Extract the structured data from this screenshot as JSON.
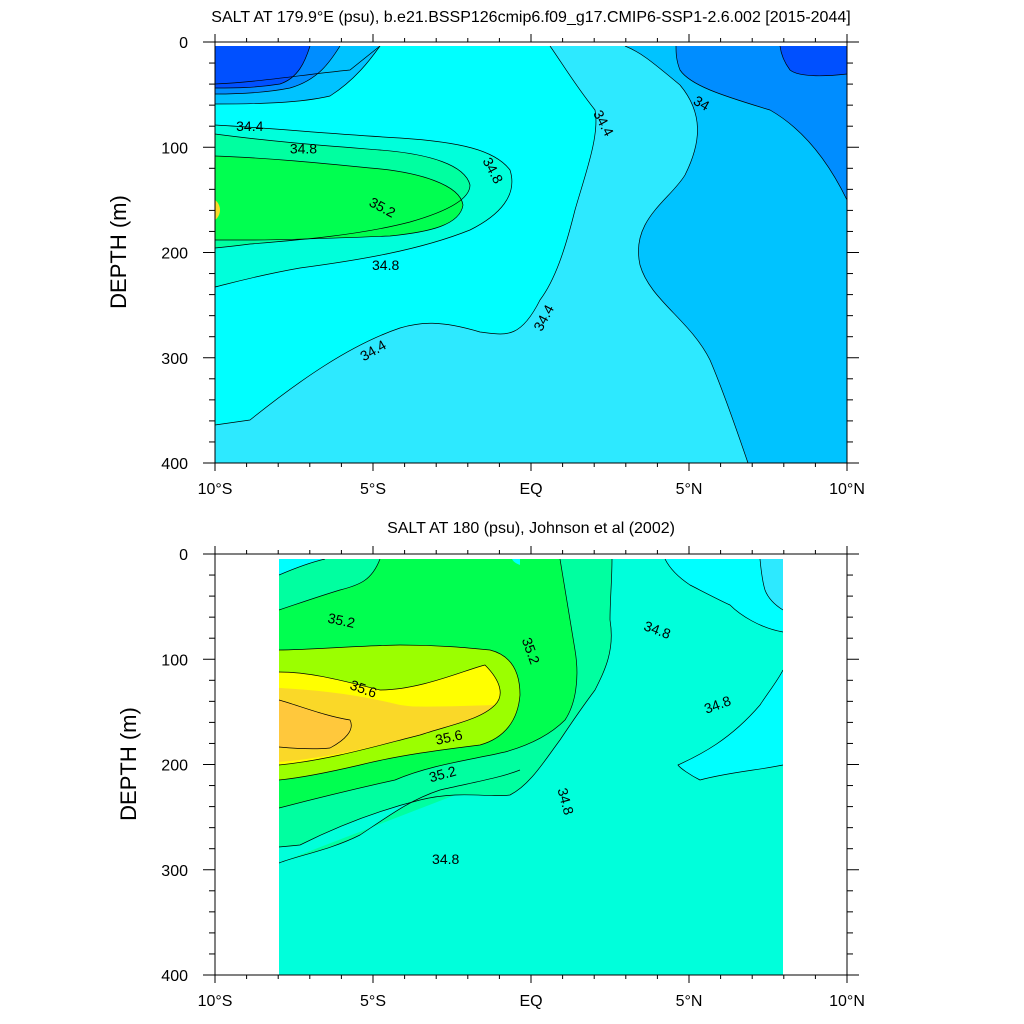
{
  "chart_data": [
    {
      "type": "contour",
      "title": "SALT AT 179.9°E (psu), b.e21.BSSP126cmip6.f09_g17.CMIP6-SSP1-2.6.002 [2015-2044]",
      "xlabel": "",
      "ylabel": "DEPTH (m)",
      "x_ticks": [
        "10°S",
        "5°S",
        "EQ",
        "5°N",
        "10°N"
      ],
      "x_tick_values": [
        -10,
        -5,
        0,
        5,
        10
      ],
      "y_ticks": [
        "0",
        "100",
        "200",
        "300",
        "400"
      ],
      "y_tick_values": [
        0,
        100,
        200,
        300,
        400
      ],
      "xlim": [
        -10,
        10
      ],
      "ylim": [
        400,
        0
      ],
      "data_extent_lat": [
        -10,
        10
      ],
      "data_extent_depth": [
        5,
        400
      ],
      "contour_labels": [
        {
          "text": "34.4",
          "lat": -8.9,
          "depth": 80,
          "angle": 0
        },
        {
          "text": "34.8",
          "lat": -7.2,
          "depth": 101,
          "angle": 0
        },
        {
          "text": "35.2",
          "lat": -4.7,
          "depth": 157,
          "angle": 28
        },
        {
          "text": "34.8",
          "lat": -1.2,
          "depth": 122,
          "angle": 62
        },
        {
          "text": "34.8",
          "lat": -4.6,
          "depth": 212,
          "angle": 0
        },
        {
          "text": "34.4",
          "lat": -5.0,
          "depth": 293,
          "angle": -30
        },
        {
          "text": "34.4",
          "lat": 0.4,
          "depth": 262,
          "angle": -62
        },
        {
          "text": "34.4",
          "lat": 2.3,
          "depth": 77,
          "angle": 62
        },
        {
          "text": "34",
          "lat": 5.4,
          "depth": 58,
          "angle": 30
        }
      ],
      "fill_colors": [
        "#0050ff",
        "#008dff",
        "#00c3ff",
        "#2de9ff",
        "#00ffff",
        "#00ffdb",
        "#00ffa0",
        "#00ff50",
        "#fada28"
      ]
    },
    {
      "type": "contour",
      "title": "SALT AT 180 (psu), Johnson et al (2002)",
      "xlabel": "",
      "ylabel": "DEPTH (m)",
      "x_ticks": [
        "10°S",
        "5°S",
        "EQ",
        "5°N",
        "10°N"
      ],
      "x_tick_values": [
        -10,
        -5,
        0,
        5,
        10
      ],
      "y_ticks": [
        "0",
        "100",
        "200",
        "300",
        "400"
      ],
      "y_tick_values": [
        0,
        100,
        200,
        300,
        400
      ],
      "xlim": [
        -10,
        10
      ],
      "ylim": [
        400,
        0
      ],
      "data_extent_lat": [
        -8,
        8
      ],
      "data_extent_depth": [
        5,
        400
      ],
      "contour_labels": [
        {
          "text": "35.2",
          "lat": -6.0,
          "depth": 63,
          "angle": 12
        },
        {
          "text": "35.6",
          "lat": -5.3,
          "depth": 128,
          "angle": 20
        },
        {
          "text": "35.6",
          "lat": -2.6,
          "depth": 174,
          "angle": -12
        },
        {
          "text": "35.2",
          "lat": -2.8,
          "depth": 209,
          "angle": -15
        },
        {
          "text": "35.2",
          "lat": 0.0,
          "depth": 92,
          "angle": 70
        },
        {
          "text": "34.8",
          "lat": 4.0,
          "depth": 72,
          "angle": 20
        },
        {
          "text": "34.8",
          "lat": 5.9,
          "depth": 143,
          "angle": -20
        },
        {
          "text": "34.8",
          "lat": 1.1,
          "depth": 235,
          "angle": 75
        },
        {
          "text": "34.8",
          "lat": -2.7,
          "depth": 290,
          "angle": 0
        }
      ],
      "fill_colors": [
        "#2de9ff",
        "#00ffff",
        "#00ffdb",
        "#00ffa0",
        "#00ff50",
        "#9bff00",
        "#ffff00",
        "#fad828",
        "#ffc83c"
      ]
    }
  ]
}
